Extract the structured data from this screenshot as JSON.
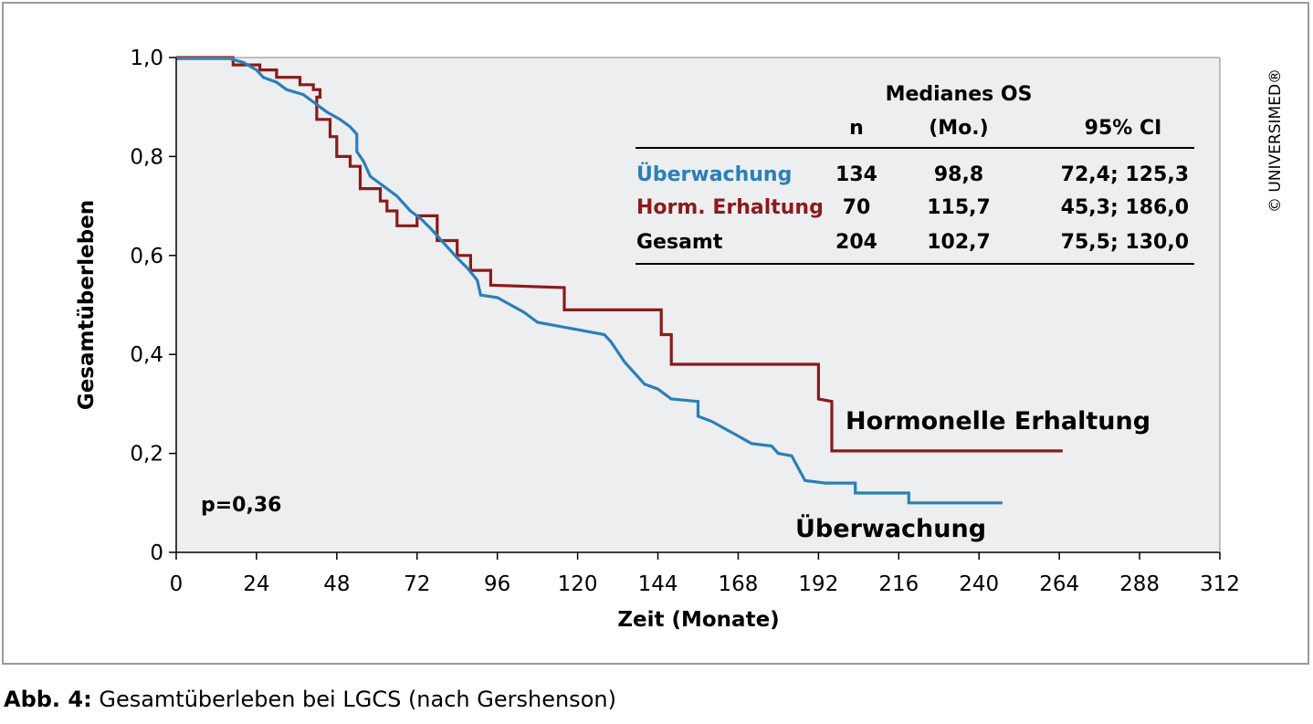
{
  "caption": {
    "label": "Abb. 4:",
    "text": "Gesamtüberleben bei LGCS (nach Gershenson)"
  },
  "copyright": "© UNIVERSIMED®",
  "colors": {
    "ueberwachung": "#2a7fb8",
    "hormonelle": "#8b1a1a",
    "plot_bg": "#edeef0",
    "frame": "#9a9a9a"
  },
  "chart_data": {
    "type": "line",
    "step": true,
    "xlabel": "Zeit (Monate)",
    "ylabel": "Gesamtüberleben",
    "xlim": [
      0,
      312
    ],
    "ylim": [
      0,
      1.0
    ],
    "x_ticks": [
      0,
      24,
      48,
      72,
      96,
      120,
      144,
      168,
      192,
      216,
      240,
      264,
      288,
      312
    ],
    "x_tick_labels": [
      "0",
      "24",
      "48",
      "72",
      "96",
      "120",
      "144",
      "168",
      "192",
      "216",
      "240",
      "264",
      "288",
      "312"
    ],
    "y_ticks": [
      0,
      0.2,
      0.4,
      0.6,
      0.8,
      1.0
    ],
    "y_tick_labels": [
      "0",
      "0,2",
      "0,4",
      "0,6",
      "0,8",
      "1,0"
    ],
    "grid": false,
    "annotations": {
      "p_value": "p=0,36",
      "label_hormonelle": "Hormonelle Erhaltung",
      "label_ueberwachung": "Überwachung"
    },
    "series": [
      {
        "name": "Hormonelle Erhaltung",
        "color": "#8b1a1a",
        "points": [
          [
            0,
            1.0
          ],
          [
            17,
            1.0
          ],
          [
            17,
            0.985
          ],
          [
            25,
            0.985
          ],
          [
            25,
            0.975
          ],
          [
            30,
            0.975
          ],
          [
            30,
            0.96
          ],
          [
            37,
            0.96
          ],
          [
            37,
            0.945
          ],
          [
            41,
            0.945
          ],
          [
            41,
            0.935
          ],
          [
            43,
            0.935
          ],
          [
            43,
            0.92
          ],
          [
            42,
            0.92
          ],
          [
            42,
            0.875
          ],
          [
            46,
            0.875
          ],
          [
            46,
            0.84
          ],
          [
            48,
            0.84
          ],
          [
            48,
            0.8
          ],
          [
            52,
            0.8
          ],
          [
            52,
            0.78
          ],
          [
            55,
            0.78
          ],
          [
            55,
            0.735
          ],
          [
            61,
            0.735
          ],
          [
            61,
            0.71
          ],
          [
            63,
            0.71
          ],
          [
            63,
            0.69
          ],
          [
            66,
            0.69
          ],
          [
            66,
            0.66
          ],
          [
            72,
            0.66
          ],
          [
            72,
            0.68
          ],
          [
            78,
            0.68
          ],
          [
            78,
            0.63
          ],
          [
            84,
            0.63
          ],
          [
            84,
            0.6
          ],
          [
            88,
            0.6
          ],
          [
            88,
            0.57
          ],
          [
            94,
            0.57
          ],
          [
            94,
            0.54
          ],
          [
            116,
            0.535
          ],
          [
            116,
            0.49
          ],
          [
            145,
            0.49
          ],
          [
            145,
            0.44
          ],
          [
            148,
            0.44
          ],
          [
            148,
            0.38
          ],
          [
            192,
            0.38
          ],
          [
            192,
            0.31
          ],
          [
            196,
            0.305
          ],
          [
            196,
            0.205
          ],
          [
            265,
            0.205
          ]
        ]
      },
      {
        "name": "Überwachung",
        "color": "#2a7fb8",
        "points": [
          [
            0,
            0.998
          ],
          [
            16,
            0.998
          ],
          [
            20,
            0.99
          ],
          [
            24,
            0.975
          ],
          [
            26,
            0.96
          ],
          [
            30,
            0.95
          ],
          [
            33,
            0.935
          ],
          [
            38,
            0.925
          ],
          [
            42,
            0.905
          ],
          [
            45,
            0.89
          ],
          [
            49,
            0.875
          ],
          [
            52,
            0.86
          ],
          [
            54,
            0.845
          ],
          [
            54,
            0.81
          ],
          [
            56,
            0.79
          ],
          [
            58,
            0.76
          ],
          [
            62,
            0.74
          ],
          [
            66,
            0.72
          ],
          [
            70,
            0.69
          ],
          [
            73,
            0.675
          ],
          [
            76,
            0.655
          ],
          [
            80,
            0.625
          ],
          [
            84,
            0.595
          ],
          [
            87,
            0.575
          ],
          [
            90,
            0.55
          ],
          [
            91,
            0.52
          ],
          [
            96,
            0.515
          ],
          [
            100,
            0.5
          ],
          [
            104,
            0.485
          ],
          [
            108,
            0.465
          ],
          [
            112,
            0.46
          ],
          [
            116,
            0.455
          ],
          [
            120,
            0.45
          ],
          [
            124,
            0.445
          ],
          [
            128,
            0.44
          ],
          [
            130,
            0.425
          ],
          [
            132,
            0.405
          ],
          [
            134,
            0.385
          ],
          [
            136,
            0.37
          ],
          [
            138,
            0.355
          ],
          [
            140,
            0.34
          ],
          [
            144,
            0.33
          ],
          [
            148,
            0.31
          ],
          [
            156,
            0.305
          ],
          [
            156,
            0.275
          ],
          [
            160,
            0.265
          ],
          [
            164,
            0.25
          ],
          [
            168,
            0.235
          ],
          [
            172,
            0.22
          ],
          [
            178,
            0.215
          ],
          [
            180,
            0.2
          ],
          [
            184,
            0.195
          ],
          [
            186,
            0.17
          ],
          [
            188,
            0.145
          ],
          [
            194,
            0.14
          ],
          [
            203,
            0.14
          ],
          [
            203,
            0.12
          ],
          [
            219,
            0.12
          ],
          [
            219,
            0.1
          ],
          [
            247,
            0.1
          ]
        ]
      }
    ],
    "table": {
      "title": "Medianes OS",
      "headers": [
        "",
        "n",
        "(Mo.)",
        "95% CI"
      ],
      "rows": [
        {
          "label": "Überwachung",
          "n": "134",
          "median": "98,8",
          "ci": "72,4; 125,3",
          "color": "#2a7fb8"
        },
        {
          "label": "Horm. Erhaltung",
          "n": "70",
          "median": "115,7",
          "ci": "45,3; 186,0",
          "color": "#8b1a1a"
        },
        {
          "label": "Gesamt",
          "n": "204",
          "median": "102,7",
          "ci": "75,5; 130,0",
          "color": "#000000"
        }
      ]
    }
  }
}
